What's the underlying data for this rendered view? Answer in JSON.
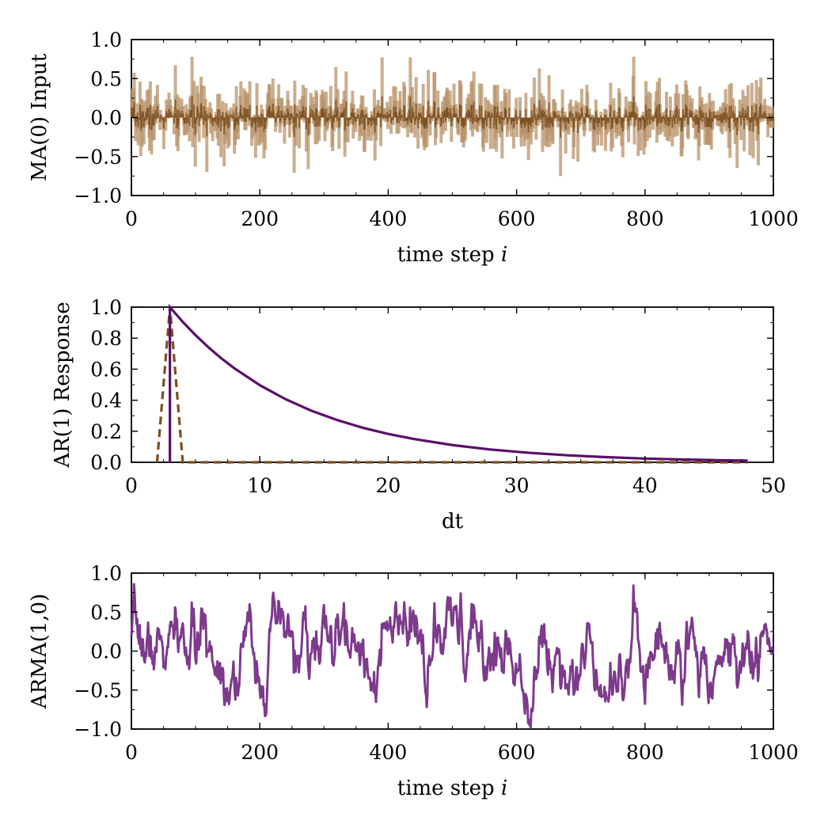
{
  "colors": {
    "ma_input": "#7b4f1f",
    "ma_input_light": "#b8936a",
    "ar_response": "#5b0f6b",
    "ar_impulse": "#7b4f1f",
    "arma_series": "#7d3a8c"
  },
  "chart_data": [
    {
      "id": "ma-input-chart",
      "type": "bar",
      "title": "",
      "xlabel_text": "time step ",
      "xlabel_var": "i",
      "ylabel": "MA(0) Input",
      "xlim": [
        0,
        1000
      ],
      "ylim": [
        -1.0,
        1.0
      ],
      "xticks": [
        0,
        200,
        400,
        600,
        800,
        1000
      ],
      "xtick_labels": [
        "0",
        "200",
        "400",
        "600",
        "800",
        "1000"
      ],
      "yticks": [
        -1.0,
        -0.5,
        0.0,
        0.5,
        1.0
      ],
      "ytick_labels": [
        "−1.0",
        "−0.5",
        "0.0",
        "0.5",
        "1.0"
      ],
      "grid": false,
      "legend": "none",
      "series": [
        {
          "kind": "random-noise",
          "count": 1000,
          "scale": 0.25,
          "clip": 0.98,
          "seed": 7
        }
      ]
    },
    {
      "id": "ar-response-chart",
      "type": "line",
      "title": "",
      "xlabel_text": "dt",
      "xlabel_var": "",
      "ylabel": "AR(1) Response",
      "xlim": [
        0,
        50
      ],
      "ylim": [
        0.0,
        1.0
      ],
      "xticks": [
        0,
        10,
        20,
        30,
        40,
        50
      ],
      "xtick_labels": [
        "0",
        "10",
        "20",
        "30",
        "40",
        "50"
      ],
      "yticks": [
        0.0,
        0.2,
        0.4,
        0.6,
        0.8,
        1.0
      ],
      "ytick_labels": [
        "0.0",
        "0.2",
        "0.4",
        "0.6",
        "0.8",
        "1.0"
      ],
      "grid": false,
      "legend": "none",
      "series": [
        {
          "style": "dashed",
          "x": [
            2,
            3,
            4,
            5,
            10,
            20,
            30,
            40,
            48
          ],
          "y": [
            0,
            1.0,
            0,
            0,
            0,
            0,
            0,
            0,
            0
          ]
        },
        {
          "style": "solid",
          "x": [
            3,
            3,
            4,
            5,
            6,
            7,
            8,
            10,
            12,
            14,
            16,
            18,
            20,
            22,
            25,
            28,
            31,
            34,
            37,
            40,
            43,
            46,
            48
          ],
          "y": [
            0,
            1.0,
            0.905,
            0.819,
            0.741,
            0.67,
            0.607,
            0.497,
            0.407,
            0.333,
            0.273,
            0.223,
            0.183,
            0.15,
            0.111,
            0.082,
            0.061,
            0.045,
            0.033,
            0.024,
            0.018,
            0.013,
            0.011
          ]
        }
      ]
    },
    {
      "id": "arma-chart",
      "type": "line",
      "title": "",
      "xlabel_text": "time step ",
      "xlabel_var": "i",
      "ylabel": "ARMA(1,0)",
      "xlim": [
        0,
        1000
      ],
      "ylim": [
        -1.0,
        1.0
      ],
      "xticks": [
        0,
        200,
        400,
        600,
        800,
        1000
      ],
      "xtick_labels": [
        "0",
        "200",
        "400",
        "600",
        "800",
        "1000"
      ],
      "yticks": [
        -1.0,
        -0.5,
        0.0,
        0.5,
        1.0
      ],
      "ytick_labels": [
        "−1.0",
        "−0.5",
        "0.0",
        "0.5",
        "1.0"
      ],
      "grid": false,
      "legend": "none",
      "series": [
        {
          "kind": "ar1-of-noise",
          "phi": 0.9,
          "count": 1000
        }
      ]
    }
  ]
}
